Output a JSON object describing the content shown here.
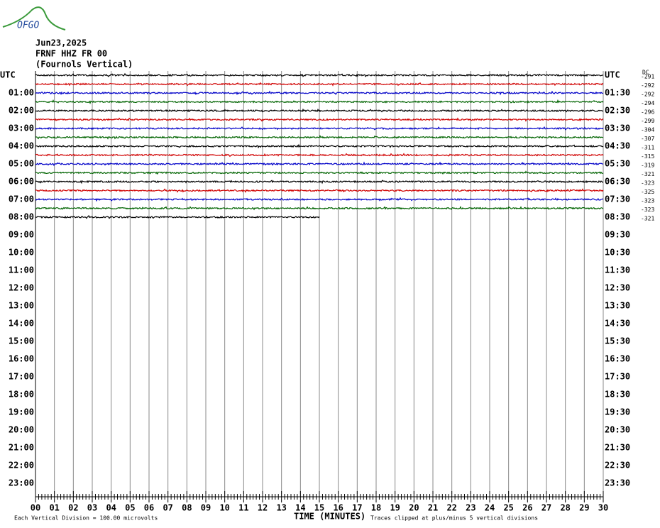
{
  "logo": "OFGO",
  "header": {
    "date": "Jun23,2025",
    "station": "FRNF HHZ FR 00",
    "name": "(Fournols Vertical)"
  },
  "left_labels": [
    "UTC",
    "01:00",
    "02:00",
    "03:00",
    "04:00",
    "05:00",
    "06:00",
    "07:00",
    "08:00",
    "09:00",
    "10:00",
    "11:00",
    "12:00",
    "13:00",
    "14:00",
    "15:00",
    "16:00",
    "17:00",
    "18:00",
    "19:00",
    "20:00",
    "21:00",
    "22:00",
    "23:00"
  ],
  "right_labels": [
    "UTC",
    "01:30",
    "02:30",
    "03:30",
    "04:30",
    "05:30",
    "06:30",
    "07:30",
    "08:30",
    "09:30",
    "10:30",
    "11:30",
    "12:30",
    "13:30",
    "14:30",
    "15:30",
    "16:30",
    "17:30",
    "18:30",
    "19:30",
    "20:30",
    "21:30",
    "22:30",
    "23:30"
  ],
  "dc_header": "DC",
  "dc_values": [
    -291,
    -292,
    -292,
    -294,
    -296,
    -299,
    -304,
    -307,
    -311,
    -315,
    -319,
    -321,
    -323,
    -325,
    -323,
    -323,
    -321
  ],
  "traces": {
    "colors": [
      "#000000",
      "#d00000",
      "#0000c8",
      "#006400"
    ],
    "last_end_minute": 15
  },
  "x_ticks": [
    "00",
    "01",
    "02",
    "03",
    "04",
    "05",
    "06",
    "07",
    "08",
    "09",
    "10",
    "11",
    "12",
    "13",
    "14",
    "15",
    "16",
    "17",
    "18",
    "19",
    "20",
    "21",
    "22",
    "23",
    "24",
    "25",
    "26",
    "27",
    "28",
    "29",
    "30"
  ],
  "x_title": "TIME (MINUTES)",
  "footer_left": "Each Vertical Division =  100.00 microvolts",
  "footer_right": "Traces clipped at plus/minus 5 vertical divisions"
}
